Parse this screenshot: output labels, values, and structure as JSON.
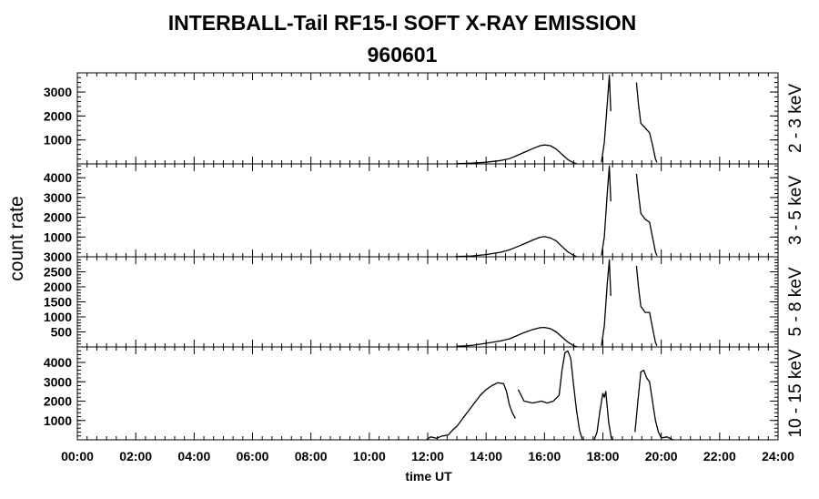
{
  "chart_data": {
    "type": "line",
    "title": "INTERBALL-Tail RF15-I SOFT X-RAY EMISSION",
    "subtitle": "960601",
    "ylabel": "count rate",
    "xlabel": "time UT",
    "x_ticks": [
      "00:00",
      "02:00",
      "04:00",
      "06:00",
      "08:00",
      "10:00",
      "12:00",
      "14:00",
      "16:00",
      "18:00",
      "20:00",
      "22:00",
      "24:00"
    ],
    "xlim": [
      0,
      24
    ],
    "panels": [
      {
        "name": "2 - 3 keV",
        "ylim": [
          0,
          3800
        ],
        "yticks": [
          1000,
          2000,
          3000
        ],
        "segments": [
          [
            [
              13.0,
              10
            ],
            [
              13.5,
              30
            ],
            [
              14.0,
              70
            ],
            [
              14.5,
              140
            ],
            [
              14.8,
              220
            ],
            [
              15.0,
              320
            ],
            [
              15.3,
              480
            ],
            [
              15.6,
              640
            ],
            [
              15.85,
              760
            ],
            [
              16.0,
              790
            ],
            [
              16.2,
              760
            ],
            [
              16.4,
              620
            ],
            [
              16.6,
              400
            ],
            [
              16.8,
              180
            ],
            [
              17.0,
              40
            ],
            [
              17.1,
              10
            ]
          ],
          [
            [
              17.95,
              60
            ],
            [
              18.05,
              900
            ],
            [
              18.15,
              2500
            ],
            [
              18.22,
              3700
            ],
            [
              18.27,
              2200
            ]
          ],
          [
            [
              19.15,
              3400
            ],
            [
              19.22,
              2500
            ],
            [
              19.3,
              1700
            ],
            [
              19.45,
              1500
            ],
            [
              19.6,
              1300
            ],
            [
              19.7,
              800
            ],
            [
              19.8,
              200
            ],
            [
              19.85,
              60
            ]
          ]
        ]
      },
      {
        "name": "3 - 5 keV",
        "ylim": [
          0,
          4700
        ],
        "yticks": [
          1000,
          2000,
          3000,
          4000
        ],
        "segments": [
          [
            [
              12.95,
              10
            ],
            [
              13.5,
              40
            ],
            [
              14.0,
              110
            ],
            [
              14.5,
              230
            ],
            [
              14.8,
              350
            ],
            [
              15.0,
              470
            ],
            [
              15.3,
              650
            ],
            [
              15.6,
              850
            ],
            [
              15.85,
              990
            ],
            [
              16.0,
              1020
            ],
            [
              16.2,
              960
            ],
            [
              16.4,
              800
            ],
            [
              16.6,
              520
            ],
            [
              16.8,
              250
            ],
            [
              17.0,
              70
            ],
            [
              17.1,
              10
            ]
          ],
          [
            [
              17.95,
              60
            ],
            [
              18.05,
              1000
            ],
            [
              18.15,
              3200
            ],
            [
              18.22,
              4600
            ],
            [
              18.27,
              2800
            ]
          ],
          [
            [
              19.15,
              4200
            ],
            [
              19.22,
              3200
            ],
            [
              19.3,
              2200
            ],
            [
              19.45,
              1900
            ],
            [
              19.6,
              1750
            ],
            [
              19.7,
              1000
            ],
            [
              19.8,
              250
            ],
            [
              19.85,
              60
            ]
          ]
        ]
      },
      {
        "name": "5 - 8 keV",
        "ylim": [
          0,
          3000
        ],
        "yticks": [
          500,
          1000,
          1500,
          2000,
          2500,
          3000
        ],
        "segments": [
          [
            [
              13.0,
              20
            ],
            [
              13.5,
              50
            ],
            [
              14.0,
              120
            ],
            [
              14.5,
              200
            ],
            [
              14.8,
              270
            ],
            [
              15.0,
              350
            ],
            [
              15.3,
              480
            ],
            [
              15.6,
              580
            ],
            [
              15.85,
              640
            ],
            [
              16.0,
              650
            ],
            [
              16.2,
              610
            ],
            [
              16.4,
              500
            ],
            [
              16.6,
              330
            ],
            [
              16.8,
              160
            ],
            [
              17.0,
              40
            ],
            [
              17.1,
              10
            ]
          ],
          [
            [
              17.95,
              40
            ],
            [
              18.05,
              700
            ],
            [
              18.15,
              2100
            ],
            [
              18.22,
              2900
            ],
            [
              18.27,
              1700
            ]
          ],
          [
            [
              19.15,
              2700
            ],
            [
              19.22,
              2000
            ],
            [
              19.3,
              1350
            ],
            [
              19.45,
              1150
            ],
            [
              19.6,
              1150
            ],
            [
              19.7,
              650
            ],
            [
              19.8,
              150
            ],
            [
              19.85,
              40
            ]
          ]
        ]
      },
      {
        "name": "10 - 15 keV",
        "ylim": [
          0,
          4800
        ],
        "yticks": [
          1000,
          2000,
          3000,
          4000
        ],
        "segments": [
          [
            [
              11.95,
              0
            ],
            [
              12.1,
              150
            ],
            [
              12.3,
              80
            ],
            [
              12.5,
              200
            ],
            [
              12.7,
              250
            ],
            [
              12.85,
              500
            ],
            [
              13.0,
              700
            ],
            [
              13.2,
              1100
            ],
            [
              13.4,
              1500
            ],
            [
              13.6,
              1900
            ],
            [
              13.8,
              2300
            ],
            [
              14.0,
              2600
            ],
            [
              14.2,
              2800
            ],
            [
              14.4,
              2950
            ],
            [
              14.6,
              2900
            ],
            [
              14.7,
              2500
            ],
            [
              14.8,
              1800
            ],
            [
              14.9,
              1400
            ],
            [
              15.0,
              1100
            ]
          ],
          [
            [
              15.1,
              2600
            ],
            [
              15.3,
              2000
            ],
            [
              15.6,
              1900
            ],
            [
              15.9,
              2000
            ],
            [
              16.1,
              1900
            ],
            [
              16.3,
              2000
            ],
            [
              16.5,
              2300
            ],
            [
              16.6,
              3600
            ],
            [
              16.7,
              4500
            ],
            [
              16.8,
              4600
            ],
            [
              16.9,
              4200
            ],
            [
              17.0,
              2800
            ],
            [
              17.1,
              1500
            ],
            [
              17.2,
              500
            ],
            [
              17.3,
              0
            ]
          ],
          [
            [
              17.7,
              0
            ],
            [
              17.8,
              400
            ],
            [
              17.9,
              1500
            ],
            [
              18.0,
              2400
            ],
            [
              18.05,
              2200
            ],
            [
              18.1,
              2500
            ],
            [
              18.2,
              900
            ],
            [
              18.3,
              0
            ]
          ],
          [
            [
              19.1,
              400
            ],
            [
              19.2,
              2000
            ],
            [
              19.3,
              3500
            ],
            [
              19.4,
              3600
            ],
            [
              19.5,
              3200
            ],
            [
              19.6,
              3000
            ],
            [
              19.7,
              2000
            ],
            [
              19.8,
              1000
            ],
            [
              19.9,
              400
            ],
            [
              20.0,
              100
            ],
            [
              20.2,
              150
            ],
            [
              20.4,
              0
            ]
          ]
        ]
      }
    ]
  }
}
